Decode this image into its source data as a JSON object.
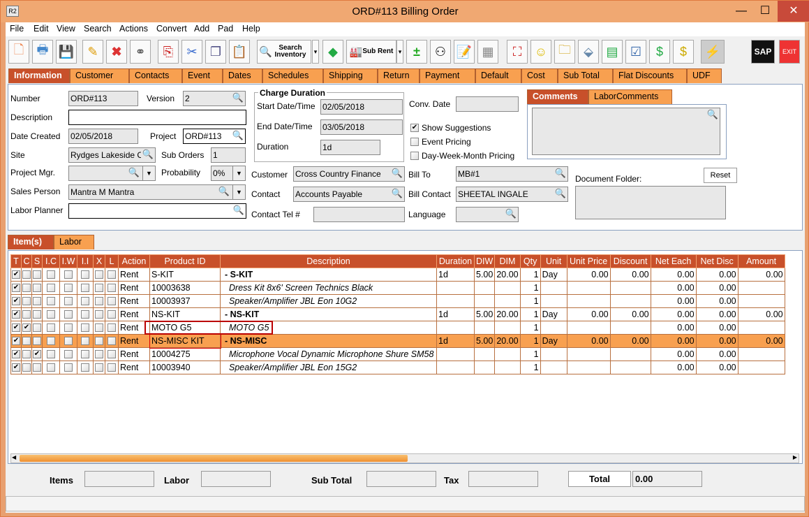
{
  "window": {
    "title": "ORD#113 Billing Order",
    "app_icon": "R2",
    "minimize": "—",
    "maximize": "☐",
    "close": "✕"
  },
  "menu": [
    "File",
    "Edit",
    "View",
    "Search",
    "Actions",
    "Convert",
    "Add",
    "Pad",
    "Help"
  ],
  "toolbar": {
    "search_inventory": "Search Inventory",
    "sub_rent": "Sub Rent",
    "sap": "SAP",
    "exit": "EXIT"
  },
  "tabs": [
    "Information",
    "Customer",
    "Contacts",
    "Event",
    "Dates",
    "Schedules",
    "Shipping",
    "Return",
    "Payment",
    "Default",
    "Cost",
    "Sub Total",
    "Flat Discounts",
    "UDF"
  ],
  "form": {
    "number_label": "Number",
    "number": "ORD#113",
    "version_label": "Version",
    "version": "2",
    "description_label": "Description",
    "description": "",
    "date_created_label": "Date Created",
    "date_created": "02/05/2018",
    "project_label": "Project",
    "project": "ORD#113",
    "site_label": "Site",
    "site": "Rydges Lakeside Ca",
    "sub_orders_label": "Sub Orders",
    "sub_orders": "1",
    "project_mgr_label": "Project Mgr.",
    "project_mgr": "",
    "probability_label": "Probability",
    "probability": "0%",
    "sales_person_label": "Sales Person",
    "sales_person": "Mantra M Mantra",
    "labor_planner_label": "Labor Planner",
    "labor_planner": "",
    "charge_duration_title": "Charge Duration",
    "start_label": "Start Date/Time",
    "start": "02/05/2018",
    "end_label": "End Date/Time",
    "end": "03/05/2018",
    "duration_label": "Duration",
    "duration": "1d",
    "conv_date_label": "Conv. Date",
    "conv_date": "",
    "show_suggestions": "Show Suggestions",
    "event_pricing": "Event Pricing",
    "dwm_pricing": "Day-Week-Month Pricing",
    "customer_label": "Customer",
    "customer": "Cross Country Finance",
    "contact_label": "Contact",
    "contact": "Accounts Payable",
    "contact_tel_label": "Contact Tel #",
    "contact_tel": "",
    "bill_to_label": "Bill To",
    "bill_to": "MB#1",
    "bill_contact_label": "Bill Contact",
    "bill_contact": "SHEETAL INGALE",
    "language_label": "Language",
    "language": "",
    "comments_tab": "Comments",
    "labor_comments_tab": "LaborComments",
    "comments": "",
    "document_folder_label": "Document Folder:",
    "reset": "Reset"
  },
  "grid_tabs": [
    "Item(s)",
    "Labor"
  ],
  "grid": {
    "columns": [
      "T",
      "C",
      "S",
      "I.C",
      "I.W",
      "I.I",
      "X",
      "L",
      "Action",
      "Product ID",
      "Description",
      "Duration",
      "DIW",
      "DIM",
      "Qty",
      "Unit",
      "Unit Price",
      "Discount",
      "Net Each",
      "Net Disc",
      "Amount"
    ],
    "rows": [
      {
        "checks": [
          1,
          0,
          0,
          0,
          0,
          0,
          0,
          0
        ],
        "action": "Rent",
        "product_id": "S-KIT",
        "description": "-  S-KIT",
        "kit": true,
        "duration": "1d",
        "diw": "5.00",
        "dim": "20.00",
        "qty": "1",
        "unit": "Day",
        "unit_price": "0.00",
        "discount": "0.00",
        "net_each": "0.00",
        "net_disc": "0.00",
        "amount": "0.00"
      },
      {
        "checks": [
          1,
          0,
          0,
          0,
          0,
          0,
          0,
          0
        ],
        "action": "Rent",
        "product_id": "10003638",
        "description": "Dress Kit 8x6' Screen Technics Black",
        "kit": false,
        "duration": "",
        "diw": "",
        "dim": "",
        "qty": "1",
        "unit": "",
        "unit_price": "",
        "discount": "",
        "net_each": "0.00",
        "net_disc": "0.00",
        "amount": ""
      },
      {
        "checks": [
          1,
          0,
          0,
          0,
          0,
          0,
          0,
          0
        ],
        "action": "Rent",
        "product_id": "10003937",
        "description": "Speaker/Amplifier JBL Eon 10G2",
        "kit": false,
        "duration": "",
        "diw": "",
        "dim": "",
        "qty": "1",
        "unit": "",
        "unit_price": "",
        "discount": "",
        "net_each": "0.00",
        "net_disc": "0.00",
        "amount": ""
      },
      {
        "checks": [
          1,
          0,
          0,
          0,
          0,
          0,
          0,
          0
        ],
        "action": "Rent",
        "product_id": "NS-KIT",
        "description": "-  NS-KIT",
        "kit": true,
        "duration": "1d",
        "diw": "5.00",
        "dim": "20.00",
        "qty": "1",
        "unit": "Day",
        "unit_price": "0.00",
        "discount": "0.00",
        "net_each": "0.00",
        "net_disc": "0.00",
        "amount": "0.00"
      },
      {
        "checks": [
          1,
          1,
          0,
          0,
          0,
          0,
          0,
          0
        ],
        "action": "Rent",
        "product_id": "MOTO G5",
        "description": "MOTO G5",
        "kit": false,
        "highlight": true,
        "duration": "",
        "diw": "",
        "dim": "",
        "qty": "1",
        "unit": "",
        "unit_price": "",
        "discount": "",
        "net_each": "0.00",
        "net_disc": "0.00",
        "amount": ""
      },
      {
        "checks": [
          1,
          0,
          0,
          0,
          0,
          0,
          0,
          0
        ],
        "action": "Rent",
        "product_id": "NS-MISC KIT",
        "description": "-  NS-MISC",
        "kit": true,
        "selected": true,
        "duration": "1d",
        "diw": "5.00",
        "dim": "20.00",
        "qty": "1",
        "unit": "Day",
        "unit_price": "0.00",
        "discount": "0.00",
        "net_each": "0.00",
        "net_disc": "0.00",
        "amount": "0.00"
      },
      {
        "checks": [
          1,
          0,
          1,
          0,
          0,
          0,
          0,
          0
        ],
        "action": "Rent",
        "product_id": "10004275",
        "description": "Microphone Vocal Dynamic Microphone Shure SM58",
        "kit": false,
        "duration": "",
        "diw": "",
        "dim": "",
        "qty": "1",
        "unit": "",
        "unit_price": "",
        "discount": "",
        "net_each": "0.00",
        "net_disc": "0.00",
        "amount": ""
      },
      {
        "checks": [
          1,
          0,
          0,
          0,
          0,
          0,
          0,
          0
        ],
        "action": "Rent",
        "product_id": "10003940",
        "description": "Speaker/Amplifier JBL Eon 15G2",
        "kit": false,
        "duration": "",
        "diw": "",
        "dim": "",
        "qty": "1",
        "unit": "",
        "unit_price": "",
        "discount": "",
        "net_each": "0.00",
        "net_disc": "0.00",
        "amount": ""
      }
    ]
  },
  "totals": {
    "items_label": "Items",
    "items": "",
    "labor_label": "Labor",
    "labor": "",
    "sub_total_label": "Sub Total",
    "sub_total": "",
    "tax_label": "Tax",
    "tax": "",
    "total_label": "Total",
    "total": "0.00"
  },
  "colors": {
    "accent": "#c8502a",
    "tab": "#f8a050",
    "selected_row": "#f8a050",
    "title_bar": "#f0a872"
  }
}
